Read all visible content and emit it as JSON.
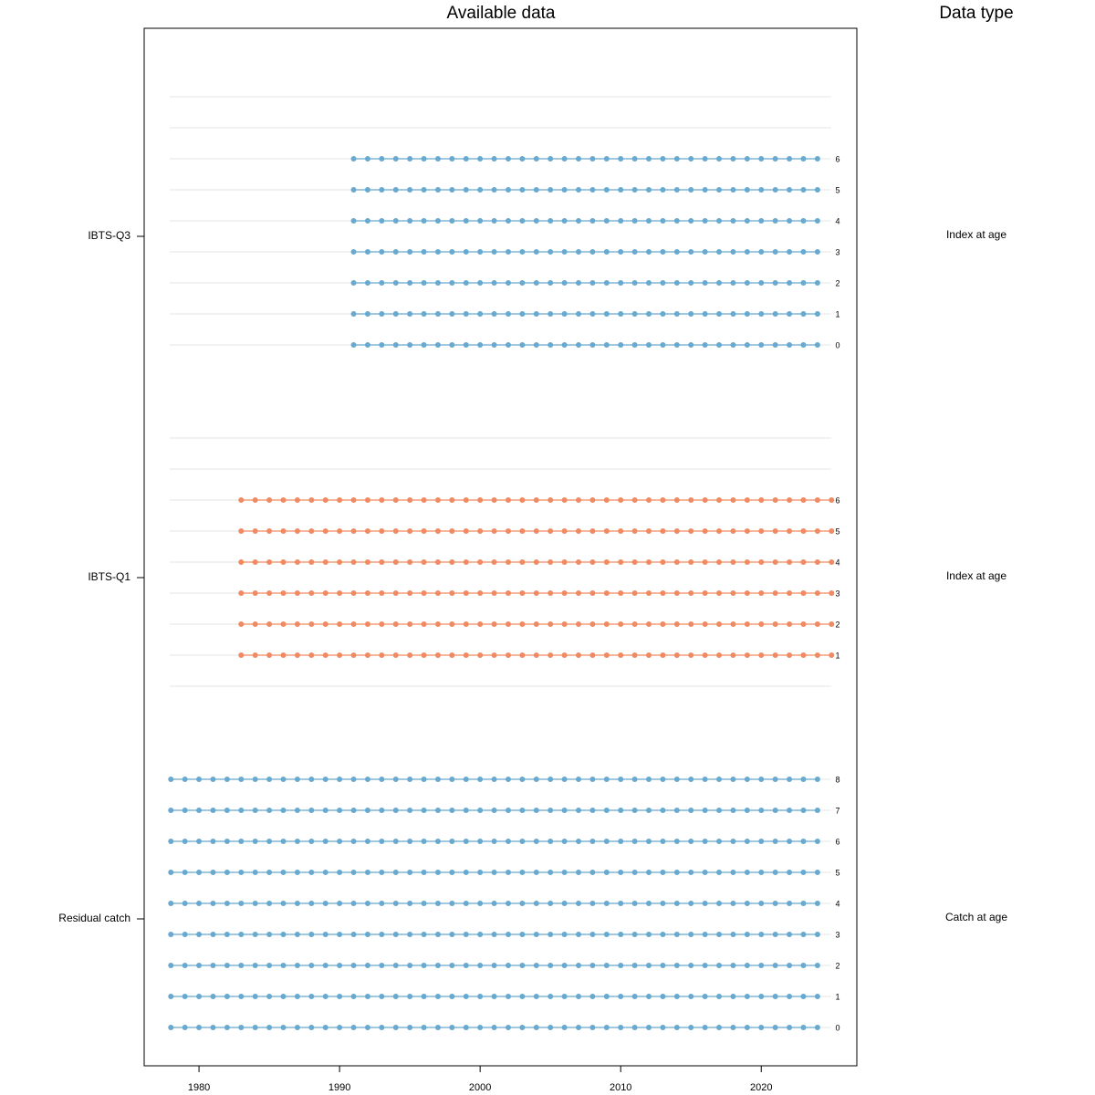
{
  "chart_data": {
    "type": "availability",
    "title": "Available data",
    "type_header": "Data type",
    "xlim": [
      1976.1,
      2026.8
    ],
    "xticks": [
      1980,
      1990,
      2000,
      2010,
      2020
    ],
    "groups": [
      {
        "name": "Residual catch",
        "data_type": "Catch at age",
        "color": "#67a9cf",
        "rows": [
          {
            "age": 0,
            "years": [
              1978,
              2024
            ]
          },
          {
            "age": 1,
            "years": [
              1978,
              2024
            ]
          },
          {
            "age": 2,
            "years": [
              1978,
              2024
            ]
          },
          {
            "age": 3,
            "years": [
              1978,
              2024
            ]
          },
          {
            "age": 4,
            "years": [
              1978,
              2024
            ]
          },
          {
            "age": 5,
            "years": [
              1978,
              2024
            ]
          },
          {
            "age": 6,
            "years": [
              1978,
              2024
            ]
          },
          {
            "age": 7,
            "years": [
              1978,
              2024
            ]
          },
          {
            "age": 8,
            "years": [
              1978,
              2024
            ]
          }
        ]
      },
      {
        "name": "IBTS-Q1",
        "data_type": "Index at age",
        "color": "#ef8a62",
        "rows": [
          {
            "age": 1,
            "years": [
              1983,
              2025
            ]
          },
          {
            "age": 2,
            "years": [
              1983,
              2025
            ]
          },
          {
            "age": 3,
            "years": [
              1983,
              2025
            ]
          },
          {
            "age": 4,
            "years": [
              1983,
              2025
            ]
          },
          {
            "age": 5,
            "years": [
              1983,
              2025
            ]
          },
          {
            "age": 6,
            "years": [
              1983,
              2025
            ]
          }
        ]
      },
      {
        "name": "IBTS-Q3",
        "data_type": "Index at age",
        "color": "#67a9cf",
        "rows": [
          {
            "age": 0,
            "years": [
              1991,
              2024
            ]
          },
          {
            "age": 1,
            "years": [
              1991,
              2024
            ]
          },
          {
            "age": 2,
            "years": [
              1991,
              2024
            ]
          },
          {
            "age": 3,
            "years": [
              1991,
              2024
            ]
          },
          {
            "age": 4,
            "years": [
              1991,
              2024
            ]
          },
          {
            "age": 5,
            "years": [
              1991,
              2024
            ]
          },
          {
            "age": 6,
            "years": [
              1991,
              2024
            ]
          }
        ]
      }
    ]
  }
}
